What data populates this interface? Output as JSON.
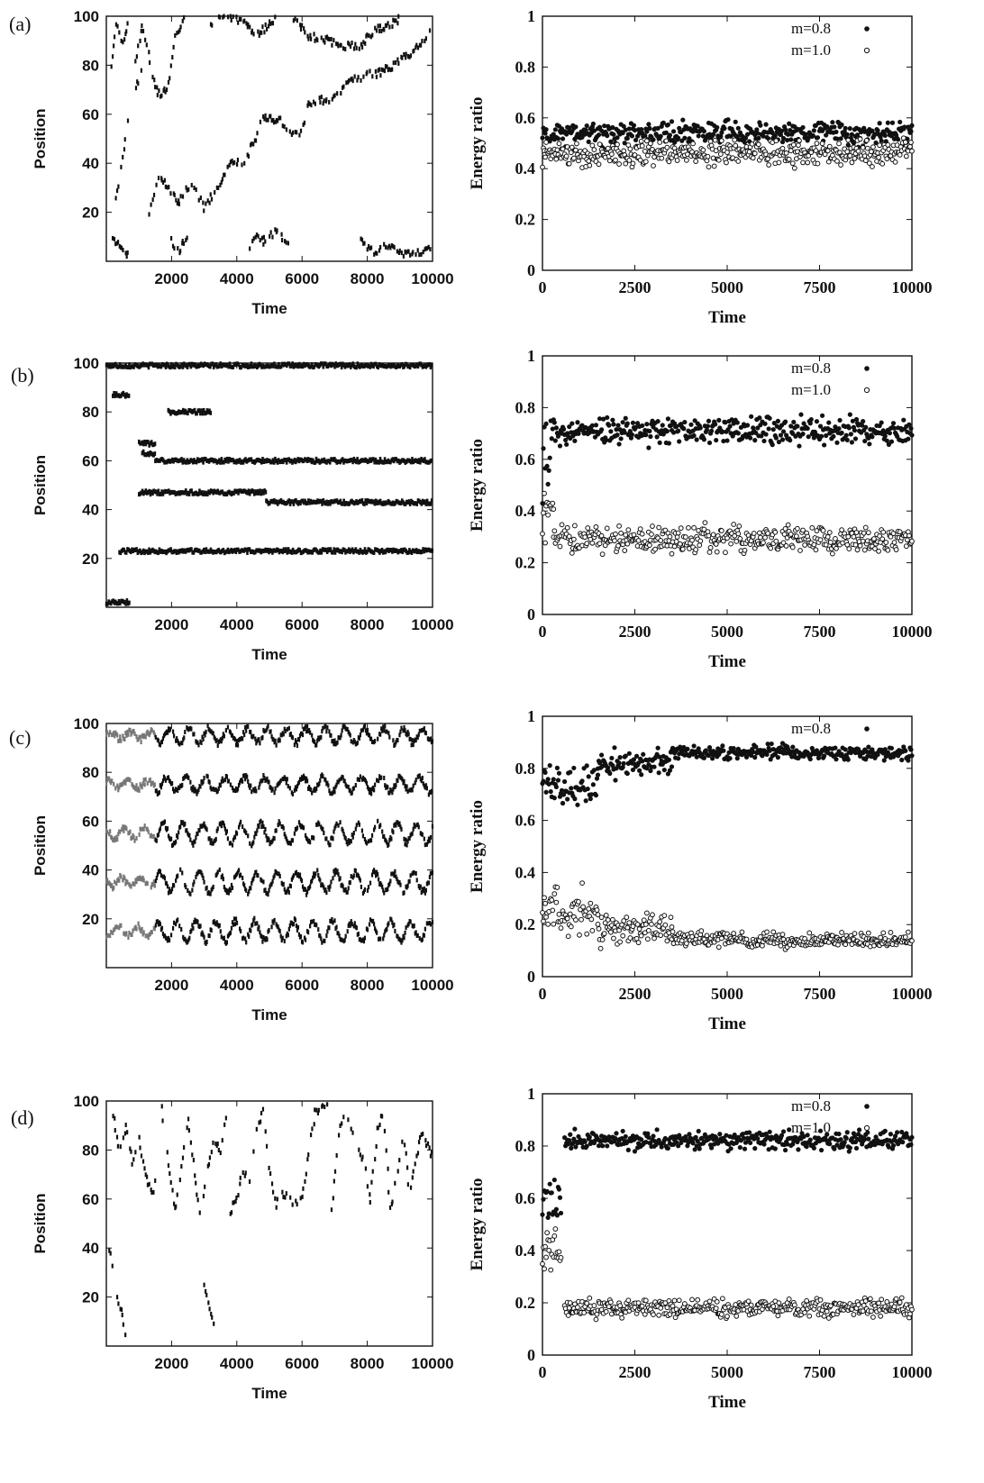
{
  "panel_labels": [
    "(a)",
    "(b)",
    "(c)",
    "(d)"
  ],
  "chart_data": [
    {
      "panel": "(a)",
      "type": "scatter",
      "xlabel": "Time",
      "ylabel": "Position",
      "xlim": [
        0,
        10000
      ],
      "ylim": [
        0,
        100
      ],
      "xticks": [
        2000,
        4000,
        6000,
        8000,
        10000
      ],
      "yticks": [
        20,
        40,
        60,
        80,
        100
      ],
      "traces": [
        {
          "pts": [
            [
              150,
              78
            ],
            [
              300,
              96
            ],
            [
              500,
              90
            ],
            [
              700,
              98
            ]
          ]
        },
        {
          "pts": [
            [
              900,
              82
            ],
            [
              1100,
              96
            ],
            [
              1300,
              85
            ],
            [
              1500,
              70
            ],
            [
              1700,
              68
            ],
            [
              1900,
              72
            ],
            [
              2100,
              92
            ],
            [
              2400,
              99
            ]
          ]
        },
        {
          "pts": [
            [
              300,
              25
            ],
            [
              500,
              42
            ],
            [
              700,
              60
            ],
            [
              900,
              70
            ],
            [
              1100,
              80
            ]
          ]
        },
        {
          "pts": [
            [
              1300,
              20
            ],
            [
              1600,
              35
            ],
            [
              1900,
              30
            ],
            [
              2200,
              24
            ],
            [
              2600,
              32
            ],
            [
              3000,
              22
            ],
            [
              3400,
              30
            ],
            [
              3800,
              40
            ],
            [
              4200,
              40
            ],
            [
              4500,
              48
            ],
            [
              4800,
              58
            ],
            [
              5300,
              58
            ],
            [
              5600,
              52
            ],
            [
              6000,
              52
            ],
            [
              6200,
              65
            ],
            [
              6800,
              66
            ],
            [
              7200,
              70
            ],
            [
              7600,
              74
            ],
            [
              8000,
              76
            ],
            [
              8400,
              77
            ],
            [
              8800,
              80
            ],
            [
              9200,
              84
            ],
            [
              9600,
              88
            ],
            [
              10000,
              95
            ]
          ]
        },
        {
          "pts": [
            [
              200,
              10
            ],
            [
              400,
              6
            ],
            [
              700,
              2
            ]
          ]
        },
        {
          "pts": [
            [
              2000,
              8
            ],
            [
              2200,
              4
            ],
            [
              2500,
              10
            ]
          ]
        },
        {
          "pts": [
            [
              4400,
              5
            ],
            [
              4600,
              12
            ],
            [
              4800,
              8
            ],
            [
              5200,
              12
            ],
            [
              5600,
              6
            ]
          ]
        },
        {
          "pts": [
            [
              7800,
              8
            ],
            [
              8200,
              4
            ],
            [
              8600,
              6
            ],
            [
              9200,
              3
            ],
            [
              10000,
              5
            ]
          ]
        },
        {
          "pts": [
            [
              3200,
              96
            ],
            [
              3600,
              100
            ],
            [
              4200,
              98
            ],
            [
              4600,
              92
            ],
            [
              5200,
              99
            ]
          ]
        },
        {
          "pts": [
            [
              5700,
              100
            ],
            [
              6200,
              92
            ],
            [
              6800,
              90
            ],
            [
              7200,
              88
            ],
            [
              7800,
              88
            ],
            [
              8200,
              94
            ],
            [
              8600,
              96
            ],
            [
              9000,
              99
            ]
          ]
        }
      ]
    },
    {
      "panel": "(a)",
      "type": "scatter",
      "xlabel": "Time",
      "ylabel": "Energy ratio",
      "xlim": [
        0,
        10000
      ],
      "ylim": [
        0,
        1
      ],
      "xticks": [
        0,
        2500,
        5000,
        7500,
        10000
      ],
      "yticks": [
        0,
        0.2,
        0.4,
        0.6,
        0.8,
        1
      ],
      "series": [
        {
          "name": "m=0.8",
          "marker": "filled",
          "segments": [
            {
              "from": 0,
              "to": 10000,
              "level": 0.54,
              "spread": 0.03
            }
          ]
        },
        {
          "name": "m=1.0",
          "marker": "open",
          "segments": [
            {
              "from": 0,
              "to": 10000,
              "level": 0.46,
              "spread": 0.035
            }
          ]
        }
      ]
    },
    {
      "panel": "(b)",
      "type": "scatter",
      "xlabel": "Time",
      "ylabel": "Position",
      "xlim": [
        0,
        10000
      ],
      "ylim": [
        0,
        100
      ],
      "xticks": [
        2000,
        4000,
        6000,
        8000,
        10000
      ],
      "yticks": [
        20,
        40,
        60,
        80,
        100
      ],
      "bands": [
        {
          "y": 99,
          "from": 0,
          "to": 10000
        },
        {
          "y": 60,
          "from": 1500,
          "to": 10000
        },
        {
          "y": 47,
          "from": 1000,
          "to": 4900
        },
        {
          "y": 43,
          "from": 4900,
          "to": 10000
        },
        {
          "y": 23,
          "from": 400,
          "to": 10000
        },
        {
          "y": 80,
          "from": 1900,
          "to": 3200
        },
        {
          "y": 67,
          "from": 1000,
          "to": 1500
        },
        {
          "y": 63,
          "from": 1100,
          "to": 1500
        },
        {
          "y": 87,
          "from": 200,
          "to": 700
        },
        {
          "y": 2,
          "from": 0,
          "to": 700
        }
      ]
    },
    {
      "panel": "(b)",
      "type": "scatter",
      "xlabel": "Time",
      "ylabel": "Energy ratio",
      "xlim": [
        0,
        10000
      ],
      "ylim": [
        0,
        1
      ],
      "xticks": [
        0,
        2500,
        5000,
        7500,
        10000
      ],
      "yticks": [
        0,
        0.2,
        0.4,
        0.6,
        0.8,
        1
      ],
      "series": [
        {
          "name": "m=0.8",
          "marker": "filled",
          "segments": [
            {
              "from": 0,
              "to": 300,
              "level": 0.6,
              "spread": 0.1
            },
            {
              "from": 300,
              "to": 10000,
              "level": 0.71,
              "spread": 0.035
            }
          ]
        },
        {
          "name": "m=1.0",
          "marker": "open",
          "segments": [
            {
              "from": 0,
              "to": 300,
              "level": 0.38,
              "spread": 0.1
            },
            {
              "from": 300,
              "to": 10000,
              "level": 0.29,
              "spread": 0.035
            }
          ]
        }
      ]
    },
    {
      "panel": "(c)",
      "type": "scatter",
      "xlabel": "Time",
      "ylabel": "Position",
      "xlim": [
        0,
        10000
      ],
      "ylim": [
        0,
        100
      ],
      "xticks": [
        2000,
        4000,
        6000,
        8000,
        10000
      ],
      "yticks": [
        20,
        40,
        60,
        80,
        100
      ],
      "oscillating_bands": [
        {
          "center": 95,
          "amp": 3
        },
        {
          "center": 75,
          "amp": 3
        },
        {
          "center": 55,
          "amp": 4
        },
        {
          "center": 35,
          "amp": 4
        },
        {
          "center": 15,
          "amp": 4
        }
      ]
    },
    {
      "panel": "(c)",
      "type": "scatter",
      "xlabel": "Time",
      "ylabel": "Energy ratio",
      "xlim": [
        0,
        10000
      ],
      "ylim": [
        0,
        1
      ],
      "xticks": [
        0,
        2500,
        5000,
        7500,
        10000
      ],
      "yticks": [
        0,
        0.2,
        0.4,
        0.6,
        0.8,
        1
      ],
      "series": [
        {
          "name": "m=0.8",
          "marker": "filled",
          "segments": [
            {
              "from": 0,
              "to": 1500,
              "level": 0.74,
              "spread": 0.06
            },
            {
              "from": 1500,
              "to": 3500,
              "level": 0.82,
              "spread": 0.04
            },
            {
              "from": 3500,
              "to": 10000,
              "level": 0.86,
              "spread": 0.02
            }
          ]
        },
        {
          "name": "",
          "marker": "open",
          "segments": [
            {
              "from": 0,
              "to": 1500,
              "level": 0.25,
              "spread": 0.06
            },
            {
              "from": 1500,
              "to": 3500,
              "level": 0.18,
              "spread": 0.04
            },
            {
              "from": 3500,
              "to": 10000,
              "level": 0.14,
              "spread": 0.02
            }
          ]
        }
      ]
    },
    {
      "panel": "(d)",
      "type": "scatter",
      "xlabel": "Time",
      "ylabel": "Position",
      "xlim": [
        0,
        10000
      ],
      "ylim": [
        0,
        100
      ],
      "xticks": [
        2000,
        4000,
        6000,
        8000,
        10000
      ],
      "yticks": [
        20,
        40,
        60,
        80,
        100
      ],
      "traces": [
        {
          "pts": [
            [
              200,
              95
            ],
            [
              400,
              80
            ],
            [
              600,
              90
            ],
            [
              800,
              75
            ],
            [
              1000,
              85
            ],
            [
              1200,
              70
            ],
            [
              1400,
              62
            ],
            [
              1600,
              72
            ]
          ]
        },
        {
          "pts": [
            [
              1700,
              98
            ],
            [
              1900,
              75
            ],
            [
              2100,
              55
            ],
            [
              2300,
              72
            ],
            [
              2500,
              92
            ],
            [
              2700,
              70
            ],
            [
              2900,
              52
            ],
            [
              3100,
              72
            ],
            [
              3300,
              85
            ],
            [
              3500,
              80
            ],
            [
              3700,
              95
            ]
          ]
        },
        {
          "pts": [
            [
              3800,
              55
            ],
            [
              4000,
              60
            ],
            [
              4200,
              72
            ],
            [
              4400,
              66
            ],
            [
              4600,
              88
            ],
            [
              4800,
              96
            ],
            [
              5000,
              72
            ],
            [
              5200,
              58
            ],
            [
              5400,
              62
            ],
            [
              5600,
              60
            ],
            [
              5800,
              58
            ],
            [
              6000,
              62
            ],
            [
              6200,
              78
            ],
            [
              6400,
              95
            ],
            [
              6600,
              98
            ],
            [
              6800,
              99
            ]
          ]
        },
        {
          "pts": [
            [
              6900,
              55
            ],
            [
              7100,
              82
            ],
            [
              7300,
              98
            ],
            [
              7500,
              90
            ],
            [
              7700,
              80
            ],
            [
              7900,
              76
            ],
            [
              8100,
              60
            ],
            [
              8300,
              88
            ],
            [
              8500,
              96
            ],
            [
              8700,
              55
            ],
            [
              8900,
              68
            ],
            [
              9100,
              88
            ],
            [
              9300,
              62
            ],
            [
              9500,
              78
            ],
            [
              9700,
              88
            ],
            [
              9900,
              80
            ],
            [
              10000,
              78
            ]
          ]
        },
        {
          "pts": [
            [
              100,
              40
            ],
            [
              300,
              22
            ],
            [
              500,
              12
            ],
            [
              600,
              3
            ]
          ]
        },
        {
          "pts": [
            [
              3000,
              25
            ],
            [
              3200,
              12
            ],
            [
              3400,
              4
            ]
          ]
        }
      ]
    },
    {
      "panel": "(d)",
      "type": "scatter",
      "xlabel": "Time",
      "ylabel": "Energy ratio",
      "xlim": [
        0,
        10000
      ],
      "ylim": [
        0,
        1
      ],
      "xticks": [
        0,
        2500,
        5000,
        7500,
        10000
      ],
      "yticks": [
        0,
        0.2,
        0.4,
        0.6,
        0.8,
        1
      ],
      "series": [
        {
          "name": "m=0.8",
          "marker": "filled",
          "segments": [
            {
              "from": 0,
              "to": 500,
              "level": 0.6,
              "spread": 0.06
            },
            {
              "from": 600,
              "to": 10000,
              "level": 0.82,
              "spread": 0.025
            }
          ]
        },
        {
          "name": "m=1.0",
          "marker": "open",
          "segments": [
            {
              "from": 0,
              "to": 500,
              "level": 0.4,
              "spread": 0.06
            },
            {
              "from": 600,
              "to": 10000,
              "level": 0.18,
              "spread": 0.025
            }
          ]
        }
      ]
    }
  ]
}
